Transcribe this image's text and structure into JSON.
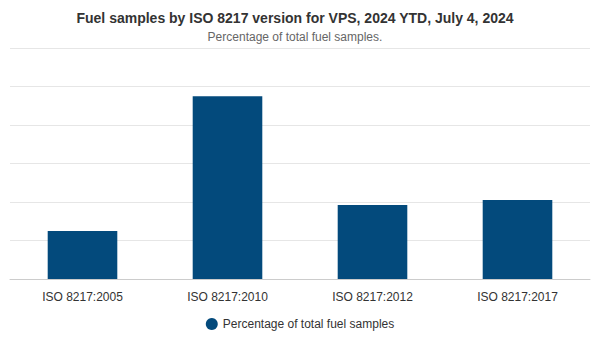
{
  "chart_data": {
    "type": "bar",
    "title": "Fuel samples by ISO 8217 version for VPS, 2024 YTD, July 4, 2024",
    "subtitle": "Percentage of total fuel samples.",
    "categories": [
      "ISO 8217:2005",
      "ISO 8217:2010",
      "ISO 8217:2012",
      "ISO 8217:2017"
    ],
    "series": [
      {
        "name": "Percentage of total fuel samples",
        "color": "#034a7c",
        "values": [
          12.5,
          47.5,
          19.2,
          20.5
        ]
      }
    ],
    "ylim": [
      0,
      60
    ],
    "yticks": [
      0,
      10,
      20,
      30,
      40,
      50,
      60
    ],
    "grid": true,
    "legend": "bottom",
    "tick_labels": "x"
  }
}
